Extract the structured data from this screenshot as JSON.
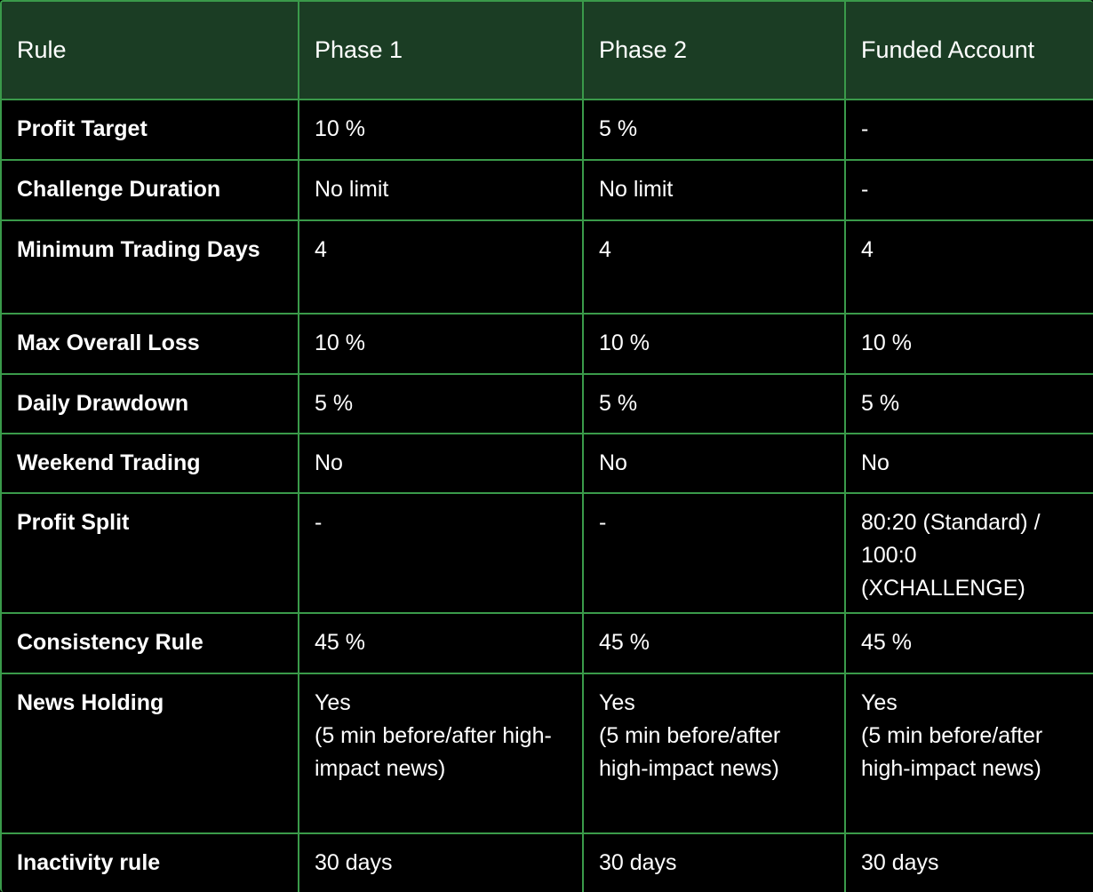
{
  "table": {
    "header": [
      "Rule",
      "Phase 1",
      "Phase 2",
      "Funded Account"
    ],
    "rows": [
      [
        "Profit Target",
        "10 %",
        "5 %",
        "-"
      ],
      [
        "Challenge Duration",
        "No limit",
        "No limit",
        "-"
      ],
      [
        "Minimum Trading Days",
        "4",
        "4",
        "4"
      ],
      [
        "Max Overall Loss",
        "10 %",
        "10 %",
        "10 %"
      ],
      [
        "Daily Drawdown",
        "5 %",
        "5 %",
        "5 %"
      ],
      [
        "Weekend Trading",
        "No",
        "No",
        "No"
      ],
      [
        "Profit Split",
        "-",
        "-",
        "80:20 (Standard) / 100:0 (XCHALLENGE)"
      ],
      [
        "Consistency Rule",
        "45 %",
        "45 %",
        "45 %"
      ],
      [
        "News Holding",
        "Yes\n(5 min before/after high-impact news)",
        "Yes\n(5 min before/after high-impact news)",
        "Yes\n(5 min before/after high-impact news)"
      ],
      [
        "Inactivity rule",
        "30 days",
        "30 days",
        "30 days"
      ]
    ]
  }
}
